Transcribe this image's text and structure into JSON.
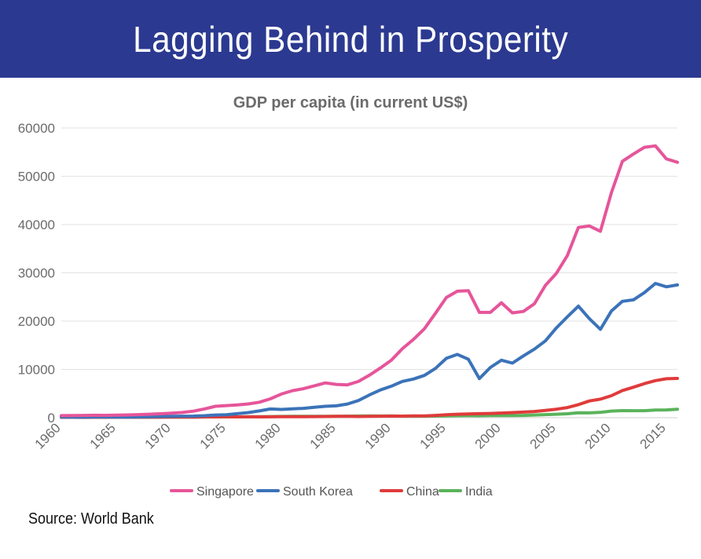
{
  "header": {
    "title": "Lagging Behind in Prosperity"
  },
  "footer": {
    "source": "Source: World Bank"
  },
  "chart_data": {
    "type": "line",
    "title": "GDP per capita (in current US$)",
    "xlabel": "",
    "ylabel": "",
    "xlim": [
      1960,
      2016
    ],
    "ylim": [
      0,
      60000
    ],
    "yticks": [
      0,
      10000,
      20000,
      30000,
      40000,
      50000,
      60000
    ],
    "xticks": [
      1960,
      1965,
      1970,
      1975,
      1980,
      1985,
      1990,
      1995,
      2000,
      2005,
      2010,
      2015
    ],
    "grid": true,
    "legend_position": "bottom",
    "x": [
      1960,
      1961,
      1962,
      1963,
      1964,
      1965,
      1966,
      1967,
      1968,
      1969,
      1970,
      1971,
      1972,
      1973,
      1974,
      1975,
      1976,
      1977,
      1978,
      1979,
      1980,
      1981,
      1982,
      1983,
      1984,
      1985,
      1986,
      1987,
      1988,
      1989,
      1990,
      1991,
      1992,
      1993,
      1994,
      1995,
      1996,
      1997,
      1998,
      1999,
      2000,
      2001,
      2002,
      2003,
      2004,
      2005,
      2006,
      2007,
      2008,
      2009,
      2010,
      2011,
      2012,
      2013,
      2014,
      2015,
      2016
    ],
    "series": [
      {
        "name": "Singapore",
        "color": "#e6559a",
        "values": [
          430,
          450,
          470,
          500,
          490,
          520,
          570,
          630,
          710,
          810,
          930,
          1070,
          1350,
          1800,
          2350,
          2500,
          2650,
          2850,
          3200,
          3900,
          4900,
          5600,
          6000,
          6600,
          7200,
          6900,
          6800,
          7500,
          8800,
          10300,
          11900,
          14300,
          16200,
          18400,
          21600,
          24900,
          26200,
          26300,
          21800,
          21800,
          23800,
          21700,
          22000,
          23600,
          27400,
          29900,
          33600,
          39400,
          39700,
          38600,
          46600,
          53100,
          54600,
          56000,
          56300,
          53600,
          52900
        ]
      },
      {
        "name": "South Korea",
        "color": "#3b73b9",
        "values": [
          160,
          95,
          105,
          145,
          125,
          110,
          135,
          165,
          200,
          245,
          280,
          305,
          325,
          410,
          560,
          620,
          830,
          1050,
          1400,
          1800,
          1710,
          1830,
          1930,
          2150,
          2350,
          2460,
          2830,
          3550,
          4700,
          5740,
          6520,
          7520,
          8000,
          8740,
          10200,
          12300,
          13100,
          12100,
          8100,
          10400,
          11900,
          11300,
          12800,
          14200,
          15900,
          18600,
          20900,
          23100,
          20500,
          18300,
          22100,
          24100,
          24400,
          25900,
          27800,
          27100,
          27500
        ]
      },
      {
        "name": "China",
        "color": "#e03b3b",
        "values": [
          90,
          75,
          70,
          74,
          85,
          98,
          104,
          97,
          91,
          100,
          113,
          119,
          132,
          157,
          160,
          178,
          165,
          185,
          156,
          184,
          195,
          197,
          203,
          225,
          251,
          294,
          282,
          251,
          283,
          310,
          318,
          333,
          366,
          377,
          473,
          610,
          709,
          782,
          829,
          873,
          959,
          1053,
          1149,
          1289,
          1509,
          1753,
          2099,
          2694,
          3468,
          3832,
          4550,
          5618,
          6317,
          7050,
          7679,
          8067,
          8123
        ]
      },
      {
        "name": "India",
        "color": "#5bb35b",
        "values": [
          82,
          85,
          90,
          101,
          116,
          119,
          90,
          96,
          99,
          107,
          112,
          118,
          122,
          143,
          163,
          158,
          161,
          186,
          206,
          224,
          266,
          270,
          274,
          291,
          277,
          296,
          310,
          340,
          355,
          347,
          367,
          303,
          317,
          301,
          346,
          374,
          400,
          415,
          413,
          441,
          443,
          452,
          470,
          546,
          627,
          714,
          806,
          1028,
          999,
          1102,
          1358,
          1459,
          1444,
          1450,
          1574,
          1606,
          1732
        ]
      }
    ]
  }
}
